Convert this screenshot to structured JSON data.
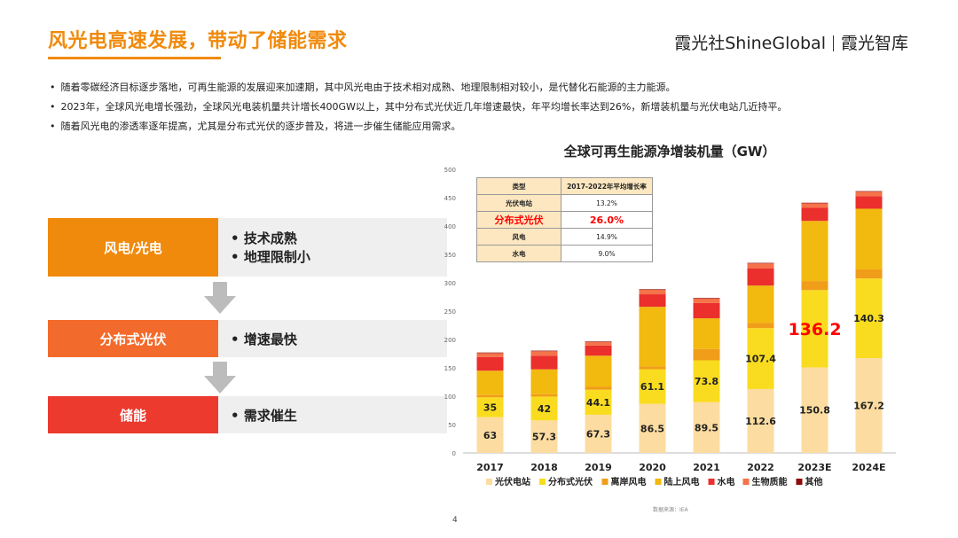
{
  "header": {
    "title": "风光电高速发展，带动了储能需求",
    "brand_left": "霞光社ShineGlobal",
    "brand_right": "霞光智库"
  },
  "bullets": [
    "随着零碳经济目标逐步落地，可再生能源的发展迎来加速期，其中风光电由于技术相对成熟、地理限制相对较小，是代替化石能源的主力能源。",
    "2023年，全球风光电增长强劲，全球风光电装机量共计增长400GW以上，其中分布式光伏近几年增速最快，年平均增长率达到26%，新增装机量与光伏电站几近持平。",
    "随着风光电的渗透率逐年提高，尤其是分布式光伏的逐步普及，将进一步催生储能应用需求。"
  ],
  "flow": [
    {
      "label": "风电/光电",
      "color": "#f08a0c",
      "points": [
        "技术成熟",
        "地理限制小"
      ]
    },
    {
      "label": "分布式光伏",
      "color": "#f36b2c",
      "points": [
        "增速最快"
      ]
    },
    {
      "label": "储能",
      "color": "#ec3a2e",
      "points": [
        "需求催生"
      ]
    }
  ],
  "growth_table": {
    "headers": [
      "类型",
      "2017-2022年平均增长率"
    ],
    "rows": [
      {
        "type": "光伏电站",
        "rate": "13.2%"
      },
      {
        "type": "分布式光伏",
        "rate": "26.0%"
      },
      {
        "type": "风电",
        "rate": "14.9%"
      },
      {
        "type": "水电",
        "rate": "9.0%"
      }
    ]
  },
  "chart_data": {
    "type": "bar",
    "stacked": true,
    "title": "全球可再生能源净增装机量（GW）",
    "categories": [
      "2017",
      "2018",
      "2019",
      "2020",
      "2021",
      "2022",
      "2023E",
      "2024E"
    ],
    "ylim": [
      0,
      500
    ],
    "yticks": [
      0,
      50,
      100,
      150,
      200,
      250,
      300,
      350,
      400,
      450,
      500
    ],
    "grid": false,
    "legend_position": "bottom",
    "series": [
      {
        "name": "光伏电站",
        "color": "#fcdca0",
        "values": [
          63,
          57.3,
          67.3,
          86.5,
          89.5,
          112.6,
          150.8,
          167.2
        ],
        "labels": [
          "63",
          "57.3",
          "67.3",
          "86.5",
          "89.5",
          "112.6",
          "150.8",
          "167.2"
        ]
      },
      {
        "name": "分布式光伏",
        "color": "#f9dc1f",
        "values": [
          35,
          42,
          44.1,
          61.1,
          73.8,
          107.4,
          136.2,
          140.3
        ],
        "labels": [
          "35",
          "42",
          "44.1",
          "61.1",
          "73.8",
          "107.4",
          "136.2",
          "140.3"
        ]
      },
      {
        "name": "离岸风电",
        "color": "#f09d1a",
        "values": [
          4,
          4,
          5,
          5,
          20,
          9,
          16,
          16
        ]
      },
      {
        "name": "陆上风电",
        "color": "#f2b90f",
        "values": [
          43,
          44,
          55,
          105,
          54,
          66,
          106,
          107
        ]
      },
      {
        "name": "水电",
        "color": "#ea2f2d",
        "values": [
          24,
          24,
          18,
          22,
          27,
          30,
          23,
          22
        ]
      },
      {
        "name": "生物质能",
        "color": "#f5724a",
        "values": [
          7,
          8,
          6,
          8,
          8,
          9,
          8,
          8
        ]
      },
      {
        "name": "其他",
        "color": "#8b0c0c",
        "values": [
          1,
          1,
          1,
          1,
          1,
          1,
          1,
          1
        ]
      }
    ],
    "highlight": {
      "category": "2023E",
      "series": "分布式光伏",
      "color": "#ff0000"
    }
  },
  "source": "数据来源：IEA",
  "page_number": "4"
}
